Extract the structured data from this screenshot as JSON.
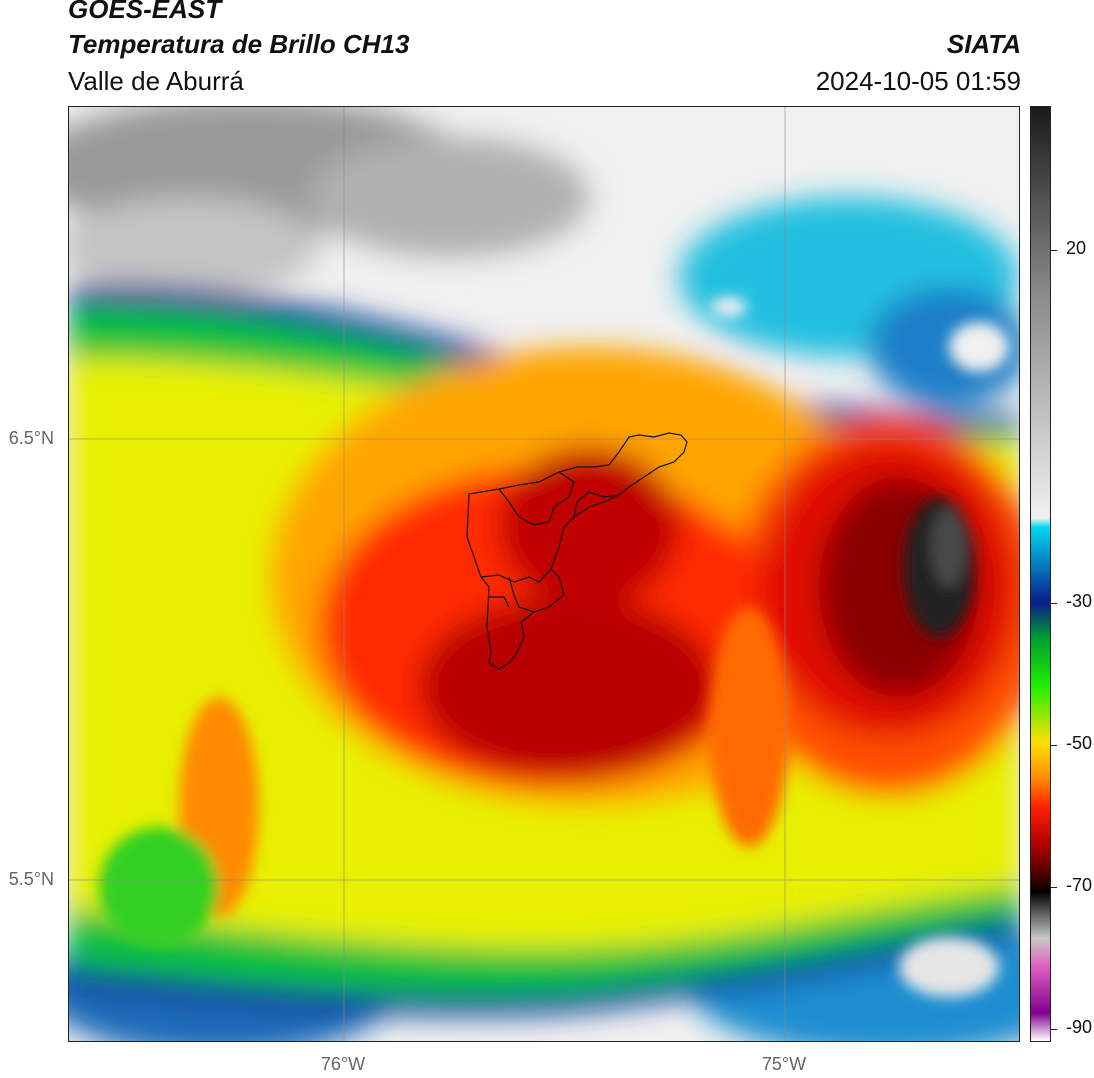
{
  "header": {
    "satellite": "GOES-EAST",
    "product": "Temperatura de Brillo CH13",
    "region": "Valle de Aburrá",
    "organization": "SIATA",
    "timestamp": "2024-10-05 01:59"
  },
  "axes": {
    "lat_labels": [
      {
        "text": "6.5°N",
        "value": 6.5
      },
      {
        "text": "5.5°N",
        "value": 5.5
      }
    ],
    "lon_labels": [
      {
        "text": "76°W",
        "value": -76.0
      },
      {
        "text": "75°W",
        "value": -75.0
      }
    ],
    "gridlines": true
  },
  "colorbar": {
    "ticks": [
      {
        "text": "20",
        "value": 20
      },
      {
        "text": "-30",
        "value": -30
      },
      {
        "text": "-50",
        "value": -50
      },
      {
        "text": "-70",
        "value": -70
      },
      {
        "text": "-90",
        "value": -90
      }
    ],
    "stops": [
      "#1a1a1a",
      "#8a8a8a",
      "#f0f0f0",
      "#00d8f0",
      "#0a1e8c",
      "#00a030",
      "#20f000",
      "#ffe000",
      "#ff8800",
      "#ff2000",
      "#b00000",
      "#300000",
      "#000000",
      "#c8c8c8",
      "#e060c0",
      "#800090",
      "#ffffff"
    ]
  }
}
